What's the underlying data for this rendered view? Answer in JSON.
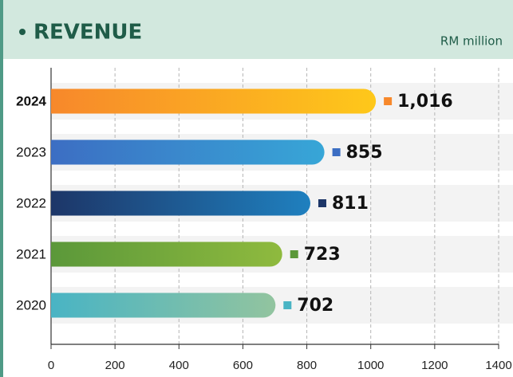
{
  "chart_data": {
    "type": "bar",
    "orientation": "horizontal",
    "title": "REVENUE",
    "unit": "RM million",
    "categories": [
      "2024",
      "2023",
      "2022",
      "2021",
      "2020"
    ],
    "values": [
      1016,
      855,
      811,
      723,
      702
    ],
    "value_labels": [
      "1,016",
      "855",
      "811",
      "723",
      "702"
    ],
    "colors": [
      [
        "#f7882b",
        "#fec81a"
      ],
      [
        "#3c6ec3",
        "#37a6d7"
      ],
      [
        "#1d3668",
        "#1f80bf"
      ],
      [
        "#5b983a",
        "#8fba3e"
      ],
      [
        "#49b4c4",
        "#92c49f"
      ]
    ],
    "xlim": [
      0,
      1400
    ],
    "xticks": [
      0,
      200,
      400,
      600,
      800,
      1000,
      1200,
      1400
    ],
    "grid": true
  }
}
